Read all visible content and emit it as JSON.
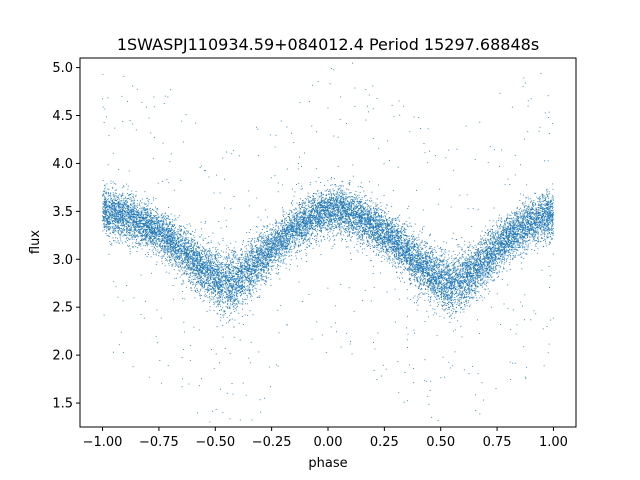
{
  "chart_data": {
    "type": "scatter",
    "title": "1SWASPJ110934.59+084012.4 Period 15297.68848s",
    "xlabel": "phase",
    "ylabel": "flux",
    "xlim": [
      -1.1,
      1.1
    ],
    "ylim": [
      1.25,
      5.1
    ],
    "xticks": [
      -1.0,
      -0.75,
      -0.5,
      -0.25,
      0.0,
      0.25,
      0.5,
      0.75,
      1.0
    ],
    "xtick_labels": [
      "−1.00",
      "−0.75",
      "−0.50",
      "−0.25",
      "0.00",
      "0.25",
      "0.50",
      "0.75",
      "1.00"
    ],
    "yticks": [
      1.5,
      2.0,
      2.5,
      3.0,
      3.5,
      4.0,
      4.5,
      5.0
    ],
    "ytick_labels": [
      "1.5",
      "2.0",
      "2.5",
      "3.0",
      "3.5",
      "4.0",
      "4.5",
      "5.0"
    ],
    "grid": false,
    "marker_color": "#1f77b4",
    "series": [
      {
        "x": [
          -1.0,
          -0.9,
          -0.8,
          -0.7,
          -0.6,
          -0.5,
          -0.45,
          -0.4,
          -0.3,
          -0.2,
          -0.1,
          0.0,
          0.05,
          0.1,
          0.2,
          0.3,
          0.4,
          0.5,
          0.55,
          0.6,
          0.7,
          0.8,
          0.9,
          1.0
        ],
        "values": [
          3.5,
          3.45,
          3.35,
          3.2,
          3.0,
          2.8,
          2.72,
          2.78,
          3.0,
          3.22,
          3.4,
          3.5,
          3.52,
          3.48,
          3.35,
          3.18,
          2.95,
          2.78,
          2.72,
          2.78,
          3.0,
          3.22,
          3.38,
          3.48
        ],
        "spread": [
          0.12,
          0.12,
          0.12,
          0.12,
          0.13,
          0.15,
          0.16,
          0.15,
          0.13,
          0.12,
          0.12,
          0.12,
          0.12,
          0.12,
          0.12,
          0.12,
          0.13,
          0.15,
          0.16,
          0.15,
          0.13,
          0.12,
          0.12,
          0.12
        ],
        "point_count": 16000
      }
    ]
  }
}
